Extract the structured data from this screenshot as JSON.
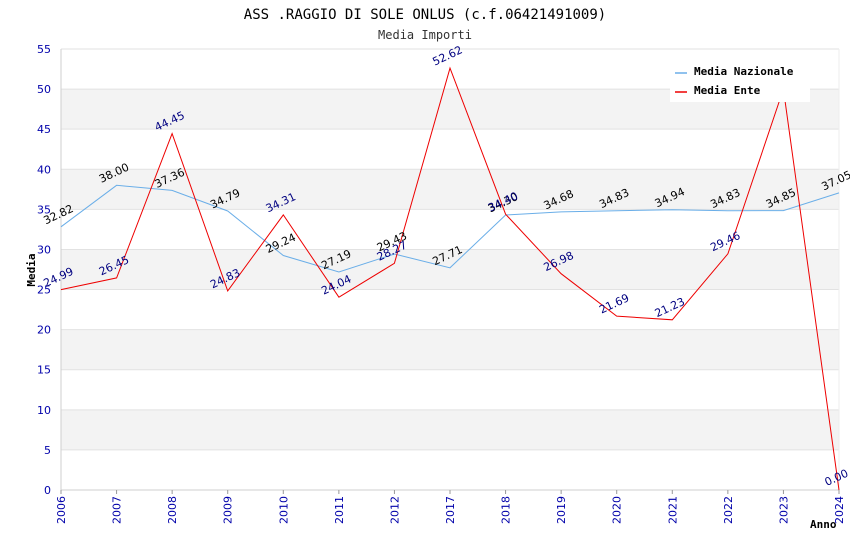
{
  "chart_data": {
    "type": "line",
    "title": "ASS .RAGGIO DI SOLE ONLUS (c.f.06421491009)",
    "subtitle": "Media Importi",
    "xlabel": "Anno",
    "ylabel": "Media",
    "ylim": [
      0,
      55
    ],
    "ytick_step": 5,
    "grid": true,
    "legend_position": "top-right",
    "categories": [
      "2006",
      "2007",
      "2008",
      "2009",
      "2010",
      "2011",
      "2012",
      "2017",
      "2018",
      "2019",
      "2020",
      "2021",
      "2022",
      "2023",
      "2024"
    ],
    "series": [
      {
        "name": "Media Nazionale",
        "color": "#6aaee8",
        "label_color": "#000000",
        "values": [
          32.82,
          38.0,
          37.36,
          34.79,
          29.24,
          27.19,
          29.43,
          27.71,
          34.3,
          34.68,
          34.83,
          34.94,
          34.83,
          34.85,
          37.05
        ],
        "value_labels": [
          "32.82",
          "38.00",
          "37.36",
          "34.79",
          "29.24",
          "27.19",
          "29.43",
          "27.71",
          "34.30",
          "34.68",
          "34.83",
          "34.94",
          "34.83",
          "34.85",
          "37.05"
        ]
      },
      {
        "name": "Media Ente",
        "color": "#ee0000",
        "label_color": "#000080",
        "values": [
          24.99,
          26.45,
          44.45,
          24.83,
          34.31,
          24.04,
          28.27,
          52.62,
          34.4,
          26.98,
          21.69,
          21.23,
          29.46,
          50.0,
          0.0
        ],
        "value_labels": [
          "24.99",
          "26.45",
          "44.45",
          "24.83",
          "34.31",
          "24.04",
          "28.27",
          "52.62",
          "34.40",
          "26.98",
          "21.69",
          "21.23",
          "29.46",
          "",
          "0.00"
        ]
      }
    ]
  }
}
